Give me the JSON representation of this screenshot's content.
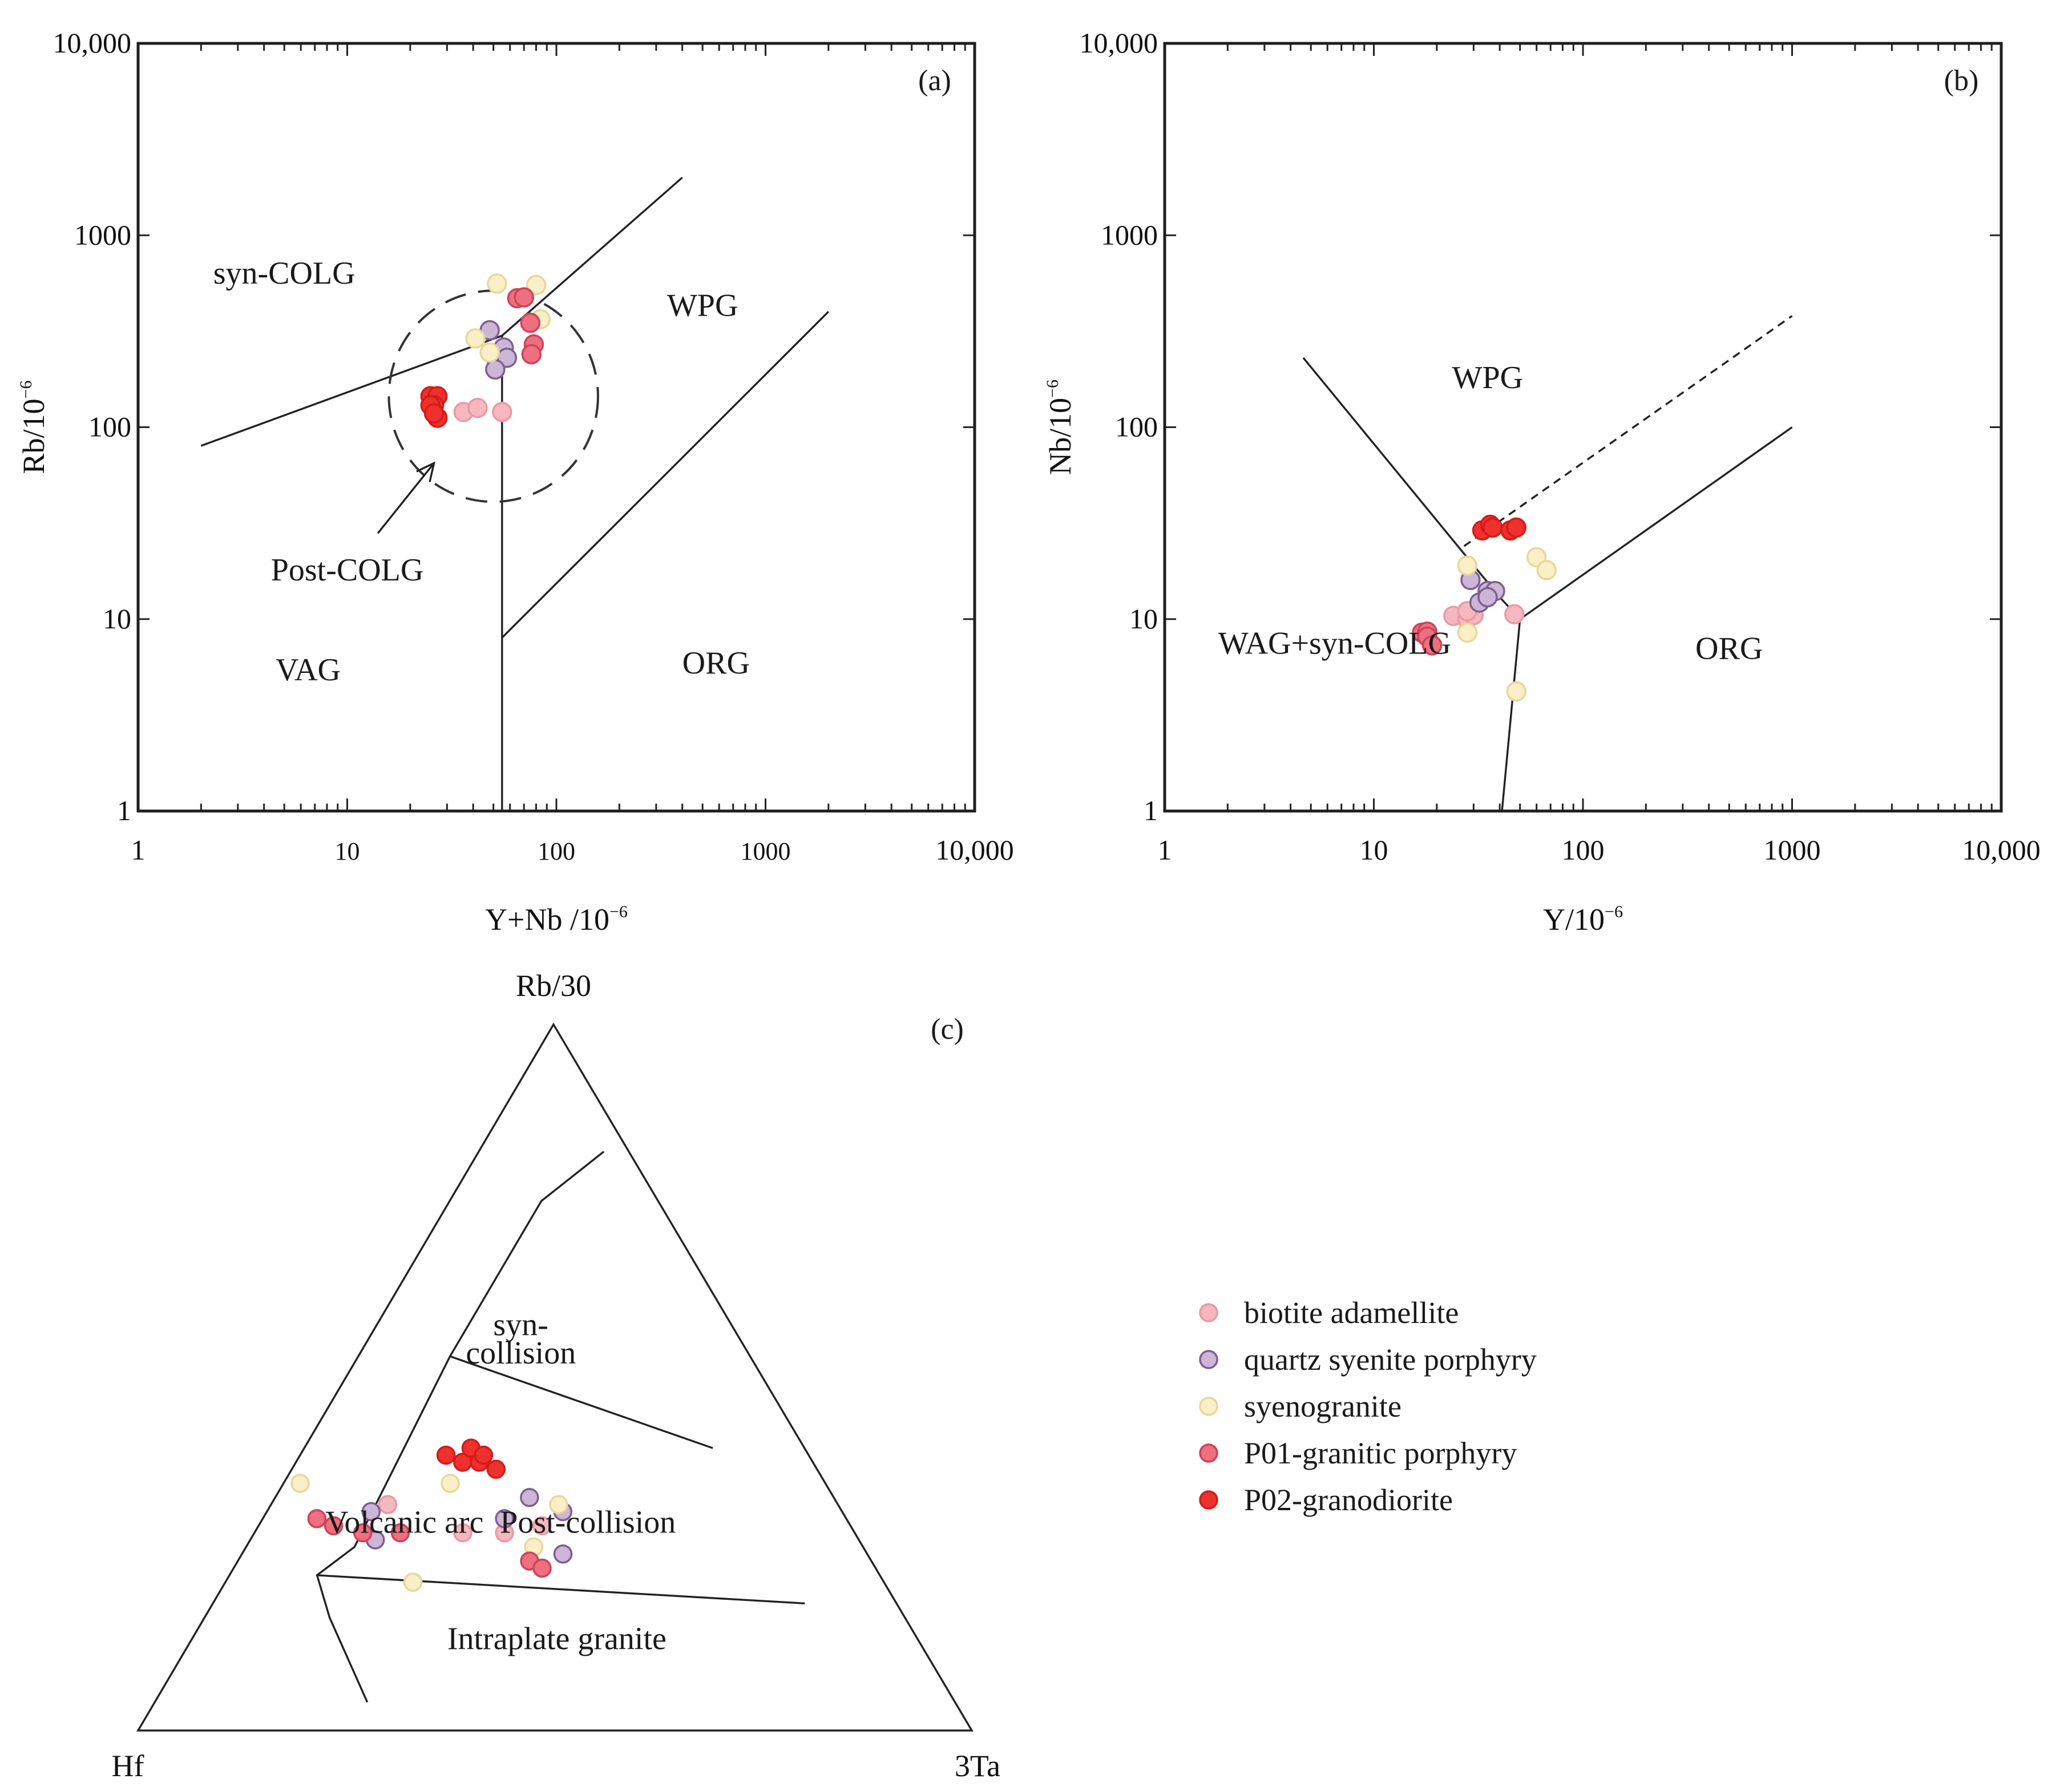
{
  "styles": {
    "biotite adamellite": {
      "fill": "#f6b7bf",
      "stroke": "#e99aa5"
    },
    "quartz syenite porphyry": {
      "fill": "#cdb5d8",
      "stroke": "#7d5f8e"
    },
    "syenogranite": {
      "fill": "#fbefc8",
      "stroke": "#e8d79a"
    },
    "P01-granitic porphyry": {
      "fill": "#ee6f7f",
      "stroke": "#cc4458"
    },
    "P02-granodiorite": {
      "fill": "#f0302c",
      "stroke": "#d01d1a"
    }
  },
  "legend": [
    "biotite adamellite",
    "quartz syenite porphyry",
    "syenogranite",
    "P01-granitic porphyry",
    "P02-granodiorite"
  ],
  "chart_data": [
    {
      "type": "scatter",
      "panel": "(a)",
      "xscale": "log",
      "yscale": "log",
      "xlim": [
        1,
        10000
      ],
      "ylim": [
        1,
        10000
      ],
      "xticks": [
        1,
        10,
        100,
        1000,
        10000
      ],
      "xticklabels": [
        "1",
        "10",
        "100",
        "1000",
        "10,000"
      ],
      "yticks": [
        1,
        10,
        100,
        1000,
        10000
      ],
      "yticklabels": [
        "1",
        "10",
        "100",
        "1000",
        "10,000"
      ],
      "xlabel_main": "Y+Nb /10",
      "xlabel_sup": "−6",
      "ylabel_main": "Rb/10",
      "ylabel_sup": "−6",
      "regions": [
        {
          "label": "syn-COLG",
          "x": 5,
          "y": 560
        },
        {
          "label": "WPG",
          "x": 500,
          "y": 380
        },
        {
          "label": "VAG",
          "x": 6.5,
          "y": 4.8
        },
        {
          "label": "ORG",
          "x": 580,
          "y": 5.2
        }
      ],
      "annotations": [
        {
          "label": "Post-COLG",
          "x": 10,
          "y": 18,
          "arrow_from": [
            14,
            28
          ],
          "arrow_to": [
            26,
            65
          ]
        }
      ],
      "lines": [
        {
          "style": "solid",
          "points": [
            [
              2,
              80
            ],
            [
              55,
              300
            ],
            [
              400,
              2000
            ]
          ]
        },
        {
          "style": "solid",
          "points": [
            [
              55,
              300
            ],
            [
              55,
              1
            ]
          ]
        },
        {
          "style": "solid",
          "points": [
            [
              55,
              8
            ],
            [
              2000,
              400
            ]
          ]
        }
      ],
      "ellipse": {
        "center": [
          50,
          145
        ],
        "rx_decades": 0.5,
        "ry_decades": 0.55
      },
      "series": [
        {
          "name": "biotite adamellite",
          "points": [
            [
              36,
              120
            ],
            [
              42,
              126
            ],
            [
              55,
              120
            ]
          ]
        },
        {
          "name": "quartz syenite porphyry",
          "points": [
            [
              48,
              320
            ],
            [
              56,
              260
            ],
            [
              52,
              220
            ],
            [
              58,
              230
            ],
            [
              51,
              200
            ]
          ]
        },
        {
          "name": "syenogranite",
          "points": [
            [
              52,
              560
            ],
            [
              80,
              550
            ],
            [
              84,
              365
            ],
            [
              41,
              290
            ],
            [
              48,
              245
            ]
          ]
        },
        {
          "name": "P01-granitic porphyry",
          "points": [
            [
              65,
              470
            ],
            [
              70,
              475
            ],
            [
              75,
              350
            ],
            [
              78,
              270
            ],
            [
              76,
              240
            ]
          ]
        },
        {
          "name": "P02-granodiorite",
          "points": [
            [
              25,
              145
            ],
            [
              27,
              145
            ],
            [
              26,
              130
            ],
            [
              25,
              130
            ],
            [
              27,
              112
            ],
            [
              26,
              118
            ]
          ]
        }
      ]
    },
    {
      "type": "scatter",
      "panel": "(b)",
      "xscale": "log",
      "yscale": "log",
      "xlim": [
        1,
        10000
      ],
      "ylim": [
        1,
        10000
      ],
      "xticks": [
        1,
        10,
        100,
        1000,
        10000
      ],
      "xticklabels": [
        "1",
        "10",
        "100",
        "1000",
        "10,000"
      ],
      "yticks": [
        1,
        10,
        100,
        1000,
        10000
      ],
      "yticklabels": [
        "1",
        "10",
        "100",
        "1000",
        "10,000"
      ],
      "xlabel_main": "Y/10",
      "xlabel_sup": "−6",
      "ylabel_main": "Nb/10",
      "ylabel_sup": "−6",
      "regions": [
        {
          "label": "WPG",
          "x": 35,
          "y": 160
        },
        {
          "label": "WAG+syn-COLG",
          "x": 6.5,
          "y": 6.6
        },
        {
          "label": "ORG",
          "x": 500,
          "y": 6.2
        }
      ],
      "annotations": [],
      "lines": [
        {
          "style": "solid",
          "points": [
            [
              4.6,
              230
            ],
            [
              40,
              13
            ],
            [
              50,
              10
            ],
            [
              1000,
              100
            ]
          ]
        },
        {
          "style": "solid",
          "points": [
            [
              50,
              10
            ],
            [
              41,
              1
            ]
          ]
        },
        {
          "style": "dashed",
          "points": [
            [
              27,
              24
            ],
            [
              1000,
              380
            ]
          ]
        }
      ],
      "series": [
        {
          "name": "biotite adamellite",
          "points": [
            [
              24,
              10.4
            ],
            [
              28,
              10
            ],
            [
              30,
              10.5
            ],
            [
              47,
              10.6
            ],
            [
              28,
              11
            ]
          ]
        },
        {
          "name": "quartz syenite porphyry",
          "points": [
            [
              29,
              16
            ],
            [
              35,
              14
            ],
            [
              38,
              14
            ],
            [
              32,
              12.2
            ],
            [
              35,
              13
            ]
          ]
        },
        {
          "name": "syenogranite",
          "points": [
            [
              28,
              19
            ],
            [
              60,
              21
            ],
            [
              67,
              18
            ],
            [
              28,
              8.5
            ],
            [
              48,
              4.2
            ]
          ]
        },
        {
          "name": "P01-granitic porphyry",
          "points": [
            [
              17,
              8.5
            ],
            [
              18,
              8.6
            ],
            [
              18,
              8.1
            ],
            [
              19,
              7.3
            ]
          ]
        },
        {
          "name": "P02-granodiorite",
          "points": [
            [
              33,
              29
            ],
            [
              36,
              31
            ],
            [
              37,
              30
            ],
            [
              45,
              29
            ],
            [
              48,
              30
            ]
          ]
        }
      ]
    },
    {
      "type": "scatter",
      "subtype": "ternary",
      "panel": "(c)",
      "vertices": {
        "top": "Rb/30",
        "left": "Hf",
        "right": "3Ta"
      },
      "regions": [
        {
          "label": "syn-",
          "a": 0.56,
          "b": 0.26,
          "c": 0.18
        },
        {
          "label": "collision",
          "a": 0.52,
          "b": 0.28,
          "c": 0.2
        },
        {
          "label": "Volcanic arc",
          "a": 0.28,
          "b": 0.54,
          "c": 0.18
        },
        {
          "label": "Post-collision",
          "a": 0.28,
          "b": 0.32,
          "c": 0.4
        },
        {
          "label": "Intraplate granite",
          "a": 0.115,
          "b": 0.44,
          "c": 0.445
        }
      ],
      "lines": [
        {
          "style": "solid",
          "points": [
            [
              0.82,
              0.03,
              0.15
            ],
            [
              0.75,
              0.14,
              0.11
            ],
            [
              0.53,
              0.36,
              0.11
            ],
            [
              0.26,
              0.61,
              0.13
            ],
            [
              0.22,
              0.675,
              0.105
            ],
            [
              0.16,
              0.69,
              0.15
            ],
            [
              0.04,
              0.705,
              0.255
            ]
          ]
        },
        {
          "style": "solid",
          "points": [
            [
              0.53,
              0.36,
              0.11
            ],
            [
              0.4,
              0.11,
              0.49
            ]
          ]
        },
        {
          "style": "solid",
          "points": [
            [
              0.22,
              0.675,
              0.105
            ],
            [
              0.18,
              0.11,
              0.71
            ]
          ]
        }
      ],
      "series": [
        {
          "name": "biotite adamellite",
          "points": [
            [
              0.32,
              0.54,
              0.14
            ],
            [
              0.28,
              0.47,
              0.25
            ],
            [
              0.28,
              0.42,
              0.3
            ],
            [
              0.29,
              0.37,
              0.34
            ]
          ]
        },
        {
          "name": "quartz syenite porphyry",
          "points": [
            [
              0.31,
              0.565,
              0.125
            ],
            [
              0.27,
              0.58,
              0.15
            ],
            [
              0.3,
              0.41,
              0.29
            ],
            [
              0.33,
              0.365,
              0.305
            ],
            [
              0.31,
              0.335,
              0.355
            ],
            [
              0.25,
              0.365,
              0.385
            ]
          ]
        },
        {
          "name": "syenogranite",
          "points": [
            [
              0.35,
              0.63,
              0.02
            ],
            [
              0.26,
              0.395,
              0.345
            ],
            [
              0.21,
              0.565,
              0.225
            ],
            [
              0.35,
              0.45,
              0.2
            ],
            [
              0.32,
              0.335,
              0.345
            ]
          ]
        },
        {
          "name": "P01-granitic porphyry",
          "points": [
            [
              0.3,
              0.635,
              0.065
            ],
            [
              0.29,
              0.62,
              0.09
            ],
            [
              0.28,
              0.59,
              0.13
            ],
            [
              0.28,
              0.545,
              0.175
            ],
            [
              0.24,
              0.41,
              0.35
            ],
            [
              0.23,
              0.4,
              0.37
            ]
          ]
        },
        {
          "name": "P02-granodiorite",
          "points": [
            [
              0.39,
              0.435,
              0.175
            ],
            [
              0.38,
              0.42,
              0.2
            ],
            [
              0.4,
              0.4,
              0.2
            ],
            [
              0.38,
              0.4,
              0.22
            ],
            [
              0.39,
              0.39,
              0.22
            ],
            [
              0.37,
              0.385,
              0.245
            ]
          ]
        }
      ]
    }
  ]
}
